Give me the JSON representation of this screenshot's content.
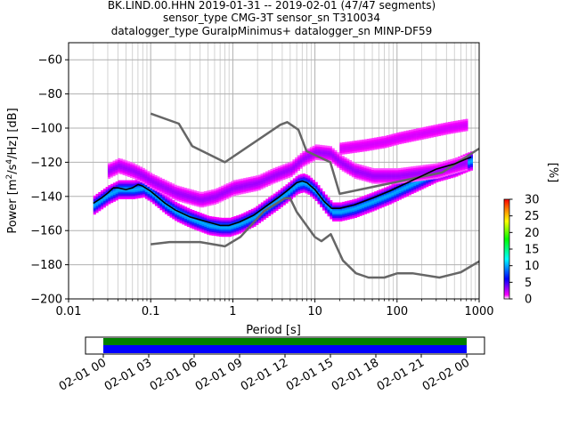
{
  "chart_data": {
    "type": "heatmap",
    "title_lines": [
      "BK.LIND.00.HHN   2019-01-31 -- 2019-02-01  (47/47 segments)",
      "sensor_type CMG-3T sensor_sn T310034",
      "datalogger_type GuralpMinimus+ datalogger_sn MINP-DF59"
    ],
    "xlabel": "Period [s]",
    "ylabel_main": "Power [m",
    "ylabel_sup1": "2",
    "ylabel_mid": "/s",
    "ylabel_sup2": "4",
    "ylabel_end": "/Hz] [dB]",
    "x_scale": "log",
    "xlim": [
      0.01,
      1000
    ],
    "ylim": [
      -200,
      -50
    ],
    "x_ticks": [
      {
        "v": 0.01,
        "label": "0.01"
      },
      {
        "v": 0.1,
        "label": "0.1"
      },
      {
        "v": 1,
        "label": "1"
      },
      {
        "v": 10,
        "label": "10"
      },
      {
        "v": 100,
        "label": "100"
      },
      {
        "v": 1000,
        "label": "1000"
      }
    ],
    "y_ticks": [
      {
        "v": -60,
        "label": "−60"
      },
      {
        "v": -80,
        "label": "−80"
      },
      {
        "v": -100,
        "label": "−100"
      },
      {
        "v": -120,
        "label": "−120"
      },
      {
        "v": -140,
        "label": "−140"
      },
      {
        "v": -160,
        "label": "−160"
      },
      {
        "v": -180,
        "label": "−180"
      },
      {
        "v": -200,
        "label": "−200"
      }
    ],
    "grid": true,
    "colorbar": {
      "label": "[%]",
      "range": [
        0,
        30
      ],
      "ticks": [
        {
          "v": 0,
          "label": "0"
        },
        {
          "v": 5,
          "label": "5"
        },
        {
          "v": 10,
          "label": "10"
        },
        {
          "v": 15,
          "label": "15"
        },
        {
          "v": 20,
          "label": "20"
        },
        {
          "v": 25,
          "label": "25"
        },
        {
          "v": 30,
          "label": "30"
        }
      ],
      "colors": [
        "#ffffff",
        "#ff00ff",
        "#0000ff",
        "#00ffff",
        "#00ff00",
        "#ffff00",
        "#ff8000",
        "#ff0000"
      ]
    },
    "noise_models": [
      {
        "name": "NHNM",
        "points": [
          [
            0.1,
            -91.5
          ],
          [
            0.22,
            -97.4
          ],
          [
            0.32,
            -110.5
          ],
          [
            0.8,
            -120
          ],
          [
            3.8,
            -98
          ],
          [
            4.6,
            -96.5
          ],
          [
            6.3,
            -101
          ],
          [
            7.9,
            -113.5
          ],
          [
            15.4,
            -120
          ],
          [
            20,
            -138.5
          ],
          [
            354,
            -126
          ],
          [
            1000,
            -112
          ]
        ]
      },
      {
        "name": "NLNM",
        "points": [
          [
            0.1,
            -168
          ],
          [
            0.17,
            -166.7
          ],
          [
            0.4,
            -166.7
          ],
          [
            0.8,
            -169.2
          ],
          [
            1.24,
            -163.7
          ],
          [
            2.4,
            -148.6
          ],
          [
            4.3,
            -141.1
          ],
          [
            5,
            -141.1
          ],
          [
            6,
            -149
          ],
          [
            10,
            -163.8
          ],
          [
            12,
            -166.2
          ],
          [
            15.6,
            -162.1
          ],
          [
            21.9,
            -177.5
          ],
          [
            31.6,
            -185
          ],
          [
            45,
            -187.5
          ],
          [
            70,
            -187.5
          ],
          [
            101,
            -185
          ],
          [
            154,
            -185
          ],
          [
            328,
            -187.5
          ],
          [
            600,
            -184.4
          ],
          [
            1000,
            -178
          ]
        ]
      }
    ],
    "mode_line": [
      [
        0.02,
        -144
      ],
      [
        0.025,
        -141
      ],
      [
        0.03,
        -138
      ],
      [
        0.035,
        -135
      ],
      [
        0.04,
        -135
      ],
      [
        0.05,
        -136
      ],
      [
        0.06,
        -135
      ],
      [
        0.07,
        -133
      ],
      [
        0.08,
        -134
      ],
      [
        0.1,
        -137
      ],
      [
        0.15,
        -144
      ],
      [
        0.2,
        -148
      ],
      [
        0.3,
        -152
      ],
      [
        0.5,
        -155
      ],
      [
        0.7,
        -157
      ],
      [
        0.9,
        -157
      ],
      [
        1.2,
        -155
      ],
      [
        1.8,
        -151
      ],
      [
        2.5,
        -146
      ],
      [
        3.5,
        -141
      ],
      [
        4.5,
        -137
      ],
      [
        6,
        -132
      ],
      [
        7,
        -131
      ],
      [
        8,
        -132
      ],
      [
        10,
        -136
      ],
      [
        13,
        -143
      ],
      [
        16,
        -147
      ],
      [
        20,
        -147
      ],
      [
        30,
        -145
      ],
      [
        50,
        -141
      ],
      [
        80,
        -137
      ],
      [
        120,
        -133
      ],
      [
        200,
        -128
      ],
      [
        300,
        -124
      ],
      [
        500,
        -121
      ],
      [
        700,
        -118
      ],
      [
        800,
        -117
      ]
    ],
    "pdf_bands": [
      {
        "percent": 10,
        "points": [
          [
            0.02,
            -145
          ],
          [
            0.03,
            -139
          ],
          [
            0.04,
            -136
          ],
          [
            0.06,
            -136
          ],
          [
            0.08,
            -135
          ],
          [
            0.1,
            -138
          ],
          [
            0.15,
            -145
          ],
          [
            0.2,
            -149
          ],
          [
            0.3,
            -153
          ],
          [
            0.5,
            -157
          ],
          [
            0.7,
            -158
          ],
          [
            0.9,
            -158
          ],
          [
            1.2,
            -156
          ],
          [
            1.8,
            -152
          ],
          [
            2.5,
            -147
          ],
          [
            3.5,
            -142
          ],
          [
            4.5,
            -138
          ],
          [
            6,
            -133
          ],
          [
            7,
            -132
          ],
          [
            8,
            -133
          ],
          [
            10,
            -137
          ],
          [
            13,
            -144
          ],
          [
            16,
            -149
          ],
          [
            20,
            -149
          ],
          [
            30,
            -147
          ],
          [
            50,
            -143
          ],
          [
            80,
            -139
          ],
          [
            120,
            -135
          ],
          [
            200,
            -130
          ],
          [
            300,
            -126
          ],
          [
            500,
            -123
          ],
          [
            700,
            -120
          ],
          [
            800,
            -119
          ]
        ]
      },
      {
        "percent": 3,
        "points": [
          [
            0.03,
            -125
          ],
          [
            0.04,
            -122
          ],
          [
            0.06,
            -125
          ],
          [
            0.08,
            -128
          ],
          [
            0.1,
            -131
          ],
          [
            0.2,
            -138
          ],
          [
            0.4,
            -142
          ],
          [
            0.6,
            -140
          ],
          [
            1,
            -135
          ],
          [
            2,
            -132
          ],
          [
            3,
            -128
          ],
          [
            5,
            -124
          ],
          [
            7,
            -118
          ],
          [
            10,
            -114
          ],
          [
            15,
            -115
          ],
          [
            20,
            -120
          ],
          [
            30,
            -125
          ],
          [
            50,
            -128
          ],
          [
            100,
            -128
          ],
          [
            300,
            -125
          ],
          [
            700,
            -120
          ]
        ]
      },
      {
        "percent": 2,
        "points": [
          [
            20,
            -112
          ],
          [
            40,
            -110
          ],
          [
            70,
            -108
          ],
          [
            100,
            -106
          ],
          [
            200,
            -103
          ],
          [
            400,
            -100
          ],
          [
            700,
            -98
          ]
        ]
      }
    ],
    "pdf_spread": 3.5
  },
  "time_axis": {
    "ticks": [
      "02-01 00",
      "02-01 03",
      "02-01 06",
      "02-01 09",
      "02-01 12",
      "02-01 15",
      "02-01 18",
      "02-01 21",
      "02-02 00"
    ],
    "coverage_colors": {
      "data": "#008000",
      "gaps": "#0000ff"
    }
  }
}
